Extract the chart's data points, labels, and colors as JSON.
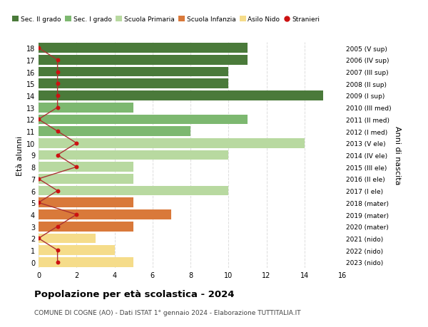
{
  "ages": [
    18,
    17,
    16,
    15,
    14,
    13,
    12,
    11,
    10,
    9,
    8,
    7,
    6,
    5,
    4,
    3,
    2,
    1,
    0
  ],
  "years": [
    "2005 (V sup)",
    "2006 (IV sup)",
    "2007 (III sup)",
    "2008 (II sup)",
    "2009 (I sup)",
    "2010 (III med)",
    "2011 (II med)",
    "2012 (I med)",
    "2013 (V ele)",
    "2014 (IV ele)",
    "2015 (III ele)",
    "2016 (II ele)",
    "2017 (I ele)",
    "2018 (mater)",
    "2019 (mater)",
    "2020 (mater)",
    "2021 (nido)",
    "2022 (nido)",
    "2023 (nido)"
  ],
  "bar_values": [
    11,
    11,
    10,
    10,
    15,
    5,
    11,
    8,
    14,
    10,
    5,
    5,
    10,
    5,
    7,
    5,
    3,
    4,
    5
  ],
  "bar_colors": [
    "#4a7a3a",
    "#4a7a3a",
    "#4a7a3a",
    "#4a7a3a",
    "#4a7a3a",
    "#7db870",
    "#7db870",
    "#7db870",
    "#b8d9a0",
    "#b8d9a0",
    "#b8d9a0",
    "#b8d9a0",
    "#b8d9a0",
    "#d9793a",
    "#d9793a",
    "#d9793a",
    "#f5dc8a",
    "#f5dc8a",
    "#f5dc8a"
  ],
  "stranieri_values": [
    0,
    1,
    1,
    1,
    1,
    1,
    0,
    1,
    2,
    1,
    2,
    0,
    1,
    0,
    2,
    1,
    0,
    1,
    1
  ],
  "stranieri_color": "#cc1111",
  "stranieri_line_color": "#aa3333",
  "title": "Popolazione per età scolastica - 2024",
  "subtitle": "COMUNE DI COGNE (AO) - Dati ISTAT 1° gennaio 2024 - Elaborazione TUTTITALIA.IT",
  "ylabel_left": "Età alunni",
  "ylabel_right": "Anni di nascita",
  "xlim": [
    0,
    16
  ],
  "xticks": [
    0,
    2,
    4,
    6,
    8,
    10,
    12,
    14,
    16
  ],
  "legend_labels": [
    "Sec. II grado",
    "Sec. I grado",
    "Scuola Primaria",
    "Scuola Infanzia",
    "Asilo Nido",
    "Stranieri"
  ],
  "legend_colors": [
    "#4a7a3a",
    "#7db870",
    "#b8d9a0",
    "#d9793a",
    "#f5dc8a",
    "#cc1111"
  ],
  "bg_color": "#ffffff",
  "grid_color": "#dddddd"
}
